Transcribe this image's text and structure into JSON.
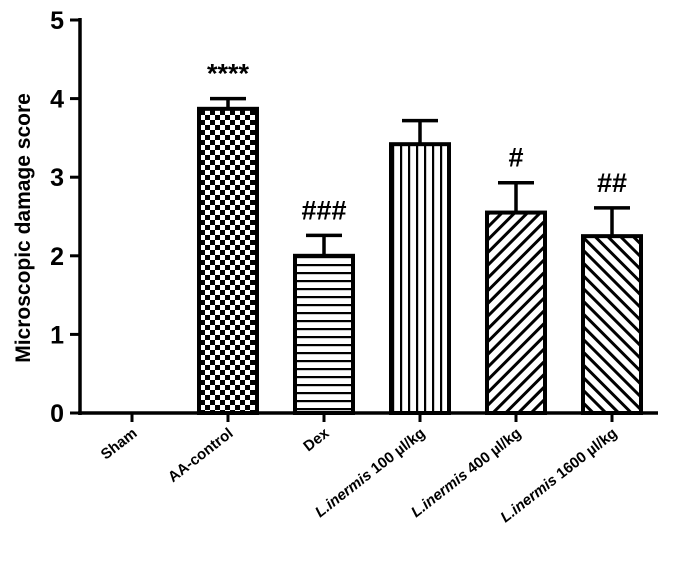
{
  "chart_data": {
    "type": "bar",
    "title": "",
    "xlabel": "",
    "ylabel": "Microscopic damage score",
    "ylim": [
      0,
      5
    ],
    "yticks": [
      "0",
      "1",
      "2",
      "3",
      "4",
      "5"
    ],
    "grid": false,
    "categories": [
      {
        "italic": "",
        "rest": "Sham"
      },
      {
        "italic": "",
        "rest": "AA-control"
      },
      {
        "italic": "",
        "rest": "Dex"
      },
      {
        "italic": "L.inermis",
        "rest": " 100 µl/kg"
      },
      {
        "italic": "L.inermis",
        "rest": " 400 µl/kg"
      },
      {
        "italic": "L.inermis",
        "rest": " 1600 µl/kg"
      }
    ],
    "values": [
      0,
      3.87,
      2.0,
      3.42,
      2.55,
      2.25
    ],
    "errors": [
      0,
      0.13,
      0.26,
      0.3,
      0.38,
      0.36
    ],
    "significance": [
      "",
      "****",
      "###",
      "",
      "#",
      "##"
    ],
    "patterns": [
      "none",
      "checker",
      "horizontal",
      "vertical",
      "diag-right",
      "diag-left"
    ],
    "colors": {
      "fill_pattern": "#000000",
      "background": "#ffffff",
      "axis": "#000000"
    }
  }
}
